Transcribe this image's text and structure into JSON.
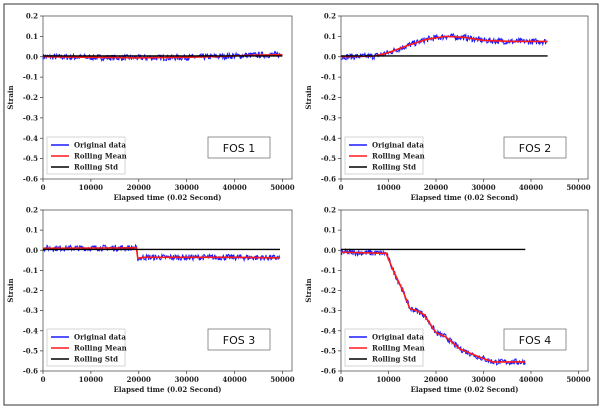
{
  "chart_data": [
    {
      "type": "line",
      "title": "FOS 1",
      "xlabel": "Elapsed time (0.02 Second)",
      "ylabel": "Strain",
      "xlim": [
        0,
        52000
      ],
      "ylim": [
        -0.6,
        0.2
      ],
      "xticks": [
        "0",
        "10000",
        "20000",
        "30000",
        "40000",
        "50000"
      ],
      "yticks": [
        "0.2",
        "0.1",
        "0.0",
        "-0.1",
        "-0.2",
        "-0.3",
        "-0.4",
        "-0.5",
        "-0.6"
      ],
      "legend": [
        "Original data",
        "Rolling Mean",
        "Rolling Std"
      ],
      "legend_position": "bottom-left",
      "series": [
        {
          "name": "Rolling Mean",
          "x": [
            0,
            10000,
            20000,
            30000,
            38000,
            44000,
            50000
          ],
          "y": [
            0.0,
            -0.003,
            -0.005,
            -0.003,
            0.002,
            0.008,
            0.01
          ]
        },
        {
          "name": "Rolling Std",
          "x": [
            0,
            50000
          ],
          "y": [
            0.004,
            0.004
          ]
        }
      ]
    },
    {
      "type": "line",
      "title": "FOS 2",
      "xlabel": "Elapsed time (0.02 Second)",
      "ylabel": "Strain",
      "xlim": [
        0,
        52000
      ],
      "ylim": [
        -0.6,
        0.2
      ],
      "xticks": [
        "0",
        "10000",
        "20000",
        "30000",
        "40000",
        "50000"
      ],
      "yticks": [
        "0.2",
        "0.1",
        "0.0",
        "-0.1",
        "-0.2",
        "-0.3",
        "-0.4",
        "-0.5",
        "-0.6"
      ],
      "legend": [
        "Original data",
        "Rolling Mean",
        "Rolling Std"
      ],
      "legend_position": "bottom-left",
      "series": [
        {
          "name": "Rolling Mean",
          "x": [
            0,
            7000,
            10000,
            14000,
            18000,
            22000,
            26000,
            30000,
            36000,
            43500
          ],
          "y": [
            0.0,
            0.003,
            0.02,
            0.055,
            0.085,
            0.1,
            0.095,
            0.08,
            0.075,
            0.075
          ]
        },
        {
          "name": "Rolling Std",
          "x": [
            0,
            43500
          ],
          "y": [
            0.004,
            0.004
          ]
        }
      ]
    },
    {
      "type": "line",
      "title": "FOS 3",
      "xlabel": "Elapsed time (0.02 Second)",
      "ylabel": "Strain",
      "xlim": [
        0,
        52000
      ],
      "ylim": [
        -0.6,
        0.2
      ],
      "xticks": [
        "0",
        "10000",
        "20000",
        "30000",
        "40000",
        "50000"
      ],
      "yticks": [
        "0.2",
        "0.1",
        "0.0",
        "-0.1",
        "-0.2",
        "-0.3",
        "-0.4",
        "-0.5",
        "-0.6"
      ],
      "legend": [
        "Original data",
        "Rolling Mean",
        "Rolling Std"
      ],
      "legend_position": "bottom-left",
      "series": [
        {
          "name": "Rolling Mean",
          "x": [
            0,
            19500,
            19800,
            21000,
            30000,
            40000,
            49500
          ],
          "y": [
            0.01,
            0.012,
            -0.04,
            -0.035,
            -0.035,
            -0.035,
            -0.038
          ]
        },
        {
          "name": "Rolling Std",
          "x": [
            0,
            49500
          ],
          "y": [
            0.004,
            0.004
          ]
        }
      ]
    },
    {
      "type": "line",
      "title": "FOS 4",
      "xlabel": "Elapsed time (0.02 Second)",
      "ylabel": "Strain",
      "xlim": [
        0,
        52000
      ],
      "ylim": [
        -0.6,
        0.2
      ],
      "xticks": [
        "0",
        "10000",
        "20000",
        "30000",
        "40000",
        "50000"
      ],
      "yticks": [
        "0.2",
        "0.1",
        "0.0",
        "-0.1",
        "-0.2",
        "-0.3",
        "-0.4",
        "-0.5",
        "-0.6"
      ],
      "legend": [
        "Original data",
        "Rolling Mean",
        "Rolling Std"
      ],
      "legend_position": "bottom-left",
      "series": [
        {
          "name": "Rolling Mean",
          "x": [
            0,
            9500,
            11000,
            13000,
            14500,
            16000,
            17500,
            20000,
            22000,
            25000,
            29000,
            32000,
            38800
          ],
          "y": [
            -0.01,
            -0.015,
            -0.1,
            -0.2,
            -0.29,
            -0.3,
            -0.32,
            -0.41,
            -0.43,
            -0.49,
            -0.53,
            -0.555,
            -0.555
          ]
        },
        {
          "name": "Rolling Std",
          "x": [
            0,
            38800
          ],
          "y": [
            0.004,
            0.004
          ]
        }
      ]
    }
  ],
  "colors": {
    "original": "#1a1aff",
    "mean": "#ff1a1a",
    "std": "#000000"
  }
}
